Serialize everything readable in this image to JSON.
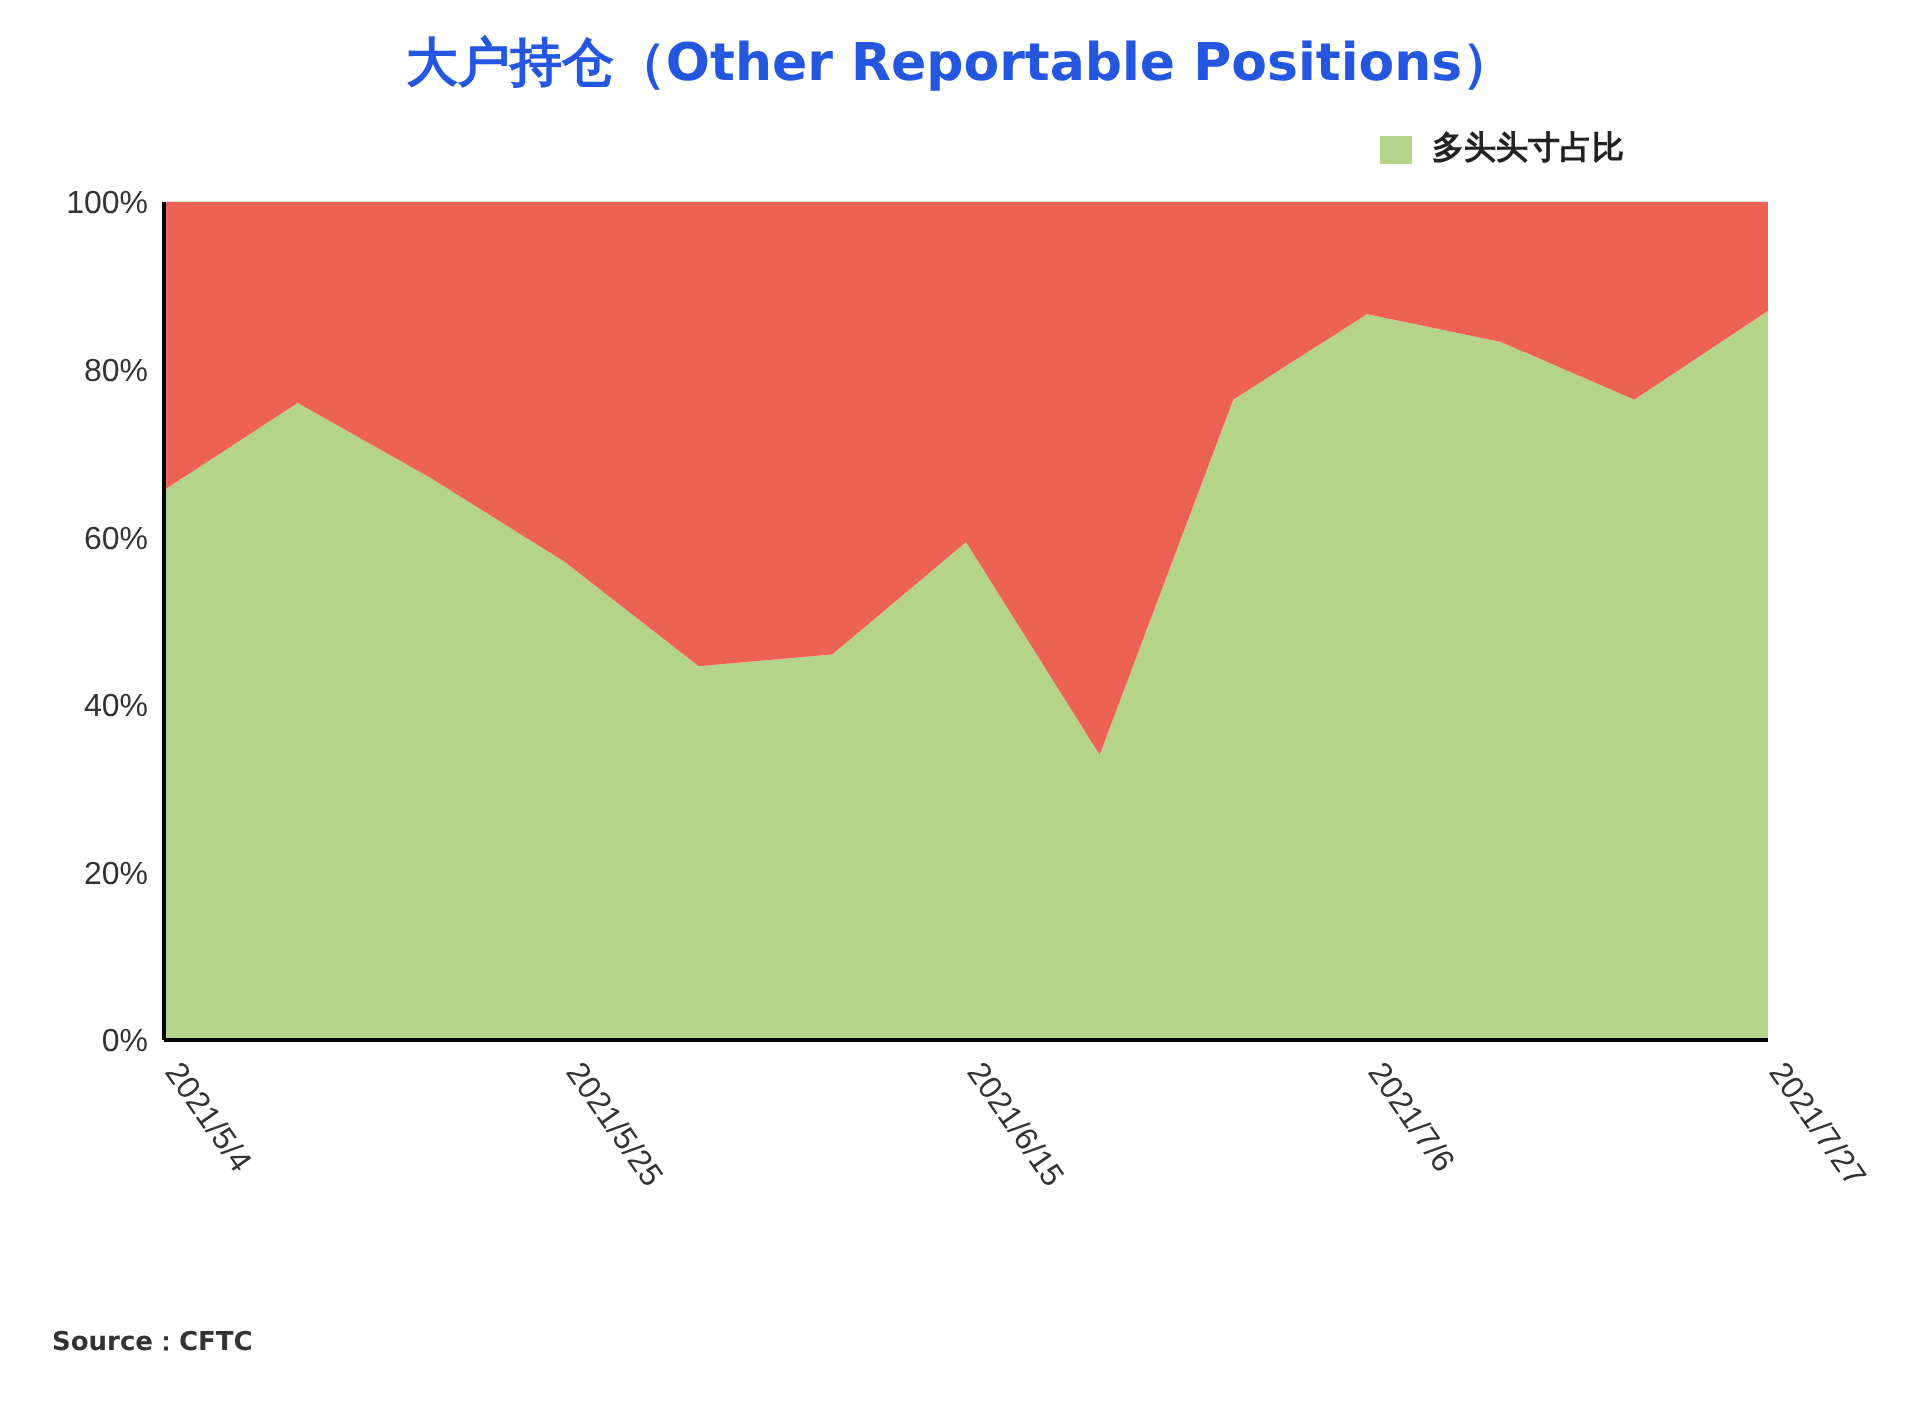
{
  "chart_data": {
    "type": "area",
    "stacked": true,
    "title": "大户持仓（Other Reportable Positions）",
    "x": [
      "2021-05-04",
      "2021-05-11",
      "2021-05-18",
      "2021-05-25",
      "2021-06-01",
      "2021-06-08",
      "2021-06-15",
      "2021-06-22",
      "2021-06-29",
      "2021-07-06",
      "2021-07-13",
      "2021-07-20",
      "2021-07-27"
    ],
    "series": [
      {
        "name": "多头头寸占比",
        "color": "#b5d48a",
        "values": [
          65.6,
          76,
          67,
          57,
          44.6,
          46,
          59.4,
          34,
          76.4,
          86.6,
          83.3,
          76.4,
          87
        ]
      },
      {
        "color": "#ec6356",
        "values": [
          34.4,
          24,
          33,
          43,
          55.4,
          54,
          40.6,
          66,
          23.6,
          13.4,
          16.7,
          23.6,
          13
        ]
      }
    ],
    "xlim": [
      "2021-05-04",
      "2021-07-27"
    ],
    "xticks": [
      {
        "value": "2021-05-04",
        "label": "2021/5/4"
      },
      {
        "value": "2021-05-25",
        "label": "2021/5/25"
      },
      {
        "value": "2021-06-15",
        "label": "2021/6/15"
      },
      {
        "value": "2021-07-06",
        "label": "2021/7/6"
      },
      {
        "value": "2021-07-27",
        "label": "2021/7/27"
      }
    ],
    "ylim": [
      0,
      100
    ],
    "yticks": [
      {
        "value": 0,
        "label": "0%"
      },
      {
        "value": 20,
        "label": "20%"
      },
      {
        "value": 40,
        "label": "40%"
      },
      {
        "value": 60,
        "label": "60%"
      },
      {
        "value": 80,
        "label": "80%"
      },
      {
        "value": 100,
        "label": "100%"
      }
    ],
    "grid": "y",
    "legend": "top right",
    "annotations": [
      "Source：CFTC"
    ]
  }
}
